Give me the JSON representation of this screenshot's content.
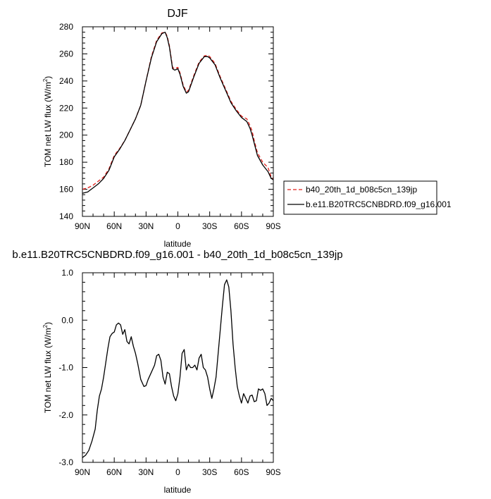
{
  "chart_data": [
    {
      "type": "line",
      "title": "DJF",
      "xlabel": "latitude",
      "ylabel_main": "TOM net LW flux (W/m",
      "ylabel_sup": "2",
      "ylabel_end": ")",
      "xlim": [
        -90,
        90
      ],
      "ylim": [
        140,
        280
      ],
      "x_ticks": [
        {
          "value": -90,
          "label": "90N"
        },
        {
          "value": -60,
          "label": "60N"
        },
        {
          "value": -30,
          "label": "30N"
        },
        {
          "value": 0,
          "label": "0"
        },
        {
          "value": 30,
          "label": "30S"
        },
        {
          "value": 60,
          "label": "60S"
        },
        {
          "value": 90,
          "label": "90S"
        }
      ],
      "y_ticks": [
        {
          "value": 140,
          "label": "140"
        },
        {
          "value": 160,
          "label": "160"
        },
        {
          "value": 180,
          "label": "180"
        },
        {
          "value": 200,
          "label": "200"
        },
        {
          "value": 220,
          "label": "220"
        },
        {
          "value": 240,
          "label": "240"
        },
        {
          "value": 260,
          "label": "260"
        },
        {
          "value": 280,
          "label": "280"
        }
      ],
      "legend_position": "right",
      "series": [
        {
          "name": "b40_20th_1d_b08c5cn_139jp",
          "color": "#e0201b",
          "dash": "dashed",
          "x": [
            -90,
            -85,
            -80,
            -75,
            -70,
            -65,
            -60,
            -55,
            -50,
            -45,
            -40,
            -35,
            -30,
            -25,
            -20,
            -15,
            -12,
            -10,
            -8,
            -5,
            -3,
            0,
            2,
            5,
            8,
            10,
            15,
            20,
            25,
            28,
            30,
            35,
            40,
            45,
            50,
            55,
            60,
            65,
            68,
            70,
            72,
            75,
            80,
            85,
            88,
            90
          ],
          "y": [
            160,
            161,
            163,
            166,
            169,
            175,
            185,
            190,
            196,
            204,
            212,
            222,
            240,
            258,
            270,
            275.5,
            276,
            273,
            266,
            250,
            249,
            250,
            246,
            237,
            232,
            233,
            244,
            254,
            258.5,
            259,
            258,
            253,
            243,
            234,
            225,
            219,
            214,
            212,
            207,
            203,
            196,
            187,
            180,
            176,
            169,
            168
          ]
        },
        {
          "name": "b.e11.B20TRC5CNBDRD.f09_g16.001",
          "color": "#000000",
          "dash": "solid",
          "x": [
            -90,
            -85,
            -80,
            -75,
            -70,
            -65,
            -60,
            -55,
            -50,
            -45,
            -40,
            -35,
            -30,
            -25,
            -20,
            -15,
            -12,
            -10,
            -8,
            -5,
            -3,
            0,
            2,
            5,
            8,
            10,
            15,
            20,
            25,
            28,
            30,
            35,
            40,
            45,
            50,
            55,
            60,
            65,
            68,
            70,
            72,
            75,
            80,
            85,
            88,
            90
          ],
          "y": [
            157,
            158,
            161,
            164,
            168,
            174,
            184,
            189.5,
            196,
            204,
            212,
            222,
            240,
            257,
            269,
            275,
            276,
            272,
            265,
            249,
            248,
            249,
            245,
            236,
            231,
            232,
            243,
            253,
            258,
            258,
            257,
            252,
            242,
            233,
            224,
            218,
            213,
            210,
            205,
            200,
            194,
            185,
            178,
            173,
            168,
            167
          ]
        }
      ]
    },
    {
      "type": "line",
      "title": "b.e11.B20TRC5CNBDRD.f09_g16.001 - b40_20th_1d_b08c5cn_139jp",
      "xlabel": "latitude",
      "ylabel_main": "TOM net LW flux (W/m",
      "ylabel_sup": "2",
      "ylabel_end": ")",
      "xlim": [
        -90,
        90
      ],
      "ylim": [
        -3.0,
        1.0
      ],
      "x_ticks": [
        {
          "value": -90,
          "label": "90N"
        },
        {
          "value": -60,
          "label": "60N"
        },
        {
          "value": -30,
          "label": "30N"
        },
        {
          "value": 0,
          "label": "0"
        },
        {
          "value": 30,
          "label": "30S"
        },
        {
          "value": 60,
          "label": "60S"
        },
        {
          "value": 90,
          "label": "90S"
        }
      ],
      "y_ticks": [
        {
          "value": -3.0,
          "label": "-3.0"
        },
        {
          "value": -2.0,
          "label": "-2.0"
        },
        {
          "value": -1.0,
          "label": "-1.0"
        },
        {
          "value": 0.0,
          "label": "0.0"
        },
        {
          "value": 1.0,
          "label": "1.0"
        }
      ],
      "series": [
        {
          "name": "",
          "color": "#000000",
          "dash": "solid",
          "x": [
            -90,
            -87,
            -84,
            -81,
            -78,
            -76,
            -74,
            -72,
            -70,
            -68,
            -66,
            -64,
            -62,
            -60,
            -58,
            -56,
            -54,
            -52,
            -50,
            -48,
            -46,
            -44,
            -42,
            -40,
            -38,
            -35,
            -32,
            -30,
            -28,
            -25,
            -22,
            -20,
            -18,
            -16,
            -14,
            -12,
            -10,
            -8,
            -6,
            -4,
            -2,
            0,
            2,
            4,
            6,
            8,
            10,
            12,
            14,
            16,
            18,
            20,
            22,
            24,
            26,
            28,
            30,
            32,
            34,
            36,
            38,
            40,
            42,
            44,
            46,
            48,
            50,
            52,
            54,
            56,
            58,
            60,
            62,
            64,
            66,
            68,
            70,
            72,
            74,
            76,
            78,
            80,
            82,
            84,
            86,
            88,
            90
          ],
          "y": [
            -2.9,
            -2.85,
            -2.75,
            -2.55,
            -2.3,
            -1.9,
            -1.6,
            -1.45,
            -1.2,
            -0.9,
            -0.6,
            -0.35,
            -0.28,
            -0.25,
            -0.1,
            -0.06,
            -0.1,
            -0.3,
            -0.2,
            -0.45,
            -0.5,
            -0.35,
            -0.55,
            -0.7,
            -0.9,
            -1.25,
            -1.4,
            -1.38,
            -1.25,
            -1.1,
            -0.95,
            -0.75,
            -0.72,
            -0.85,
            -1.2,
            -1.35,
            -1.1,
            -1.13,
            -1.4,
            -1.6,
            -1.7,
            -1.55,
            -1.2,
            -0.7,
            -0.62,
            -1.05,
            -0.93,
            -1.0,
            -1.0,
            -0.95,
            -1.05,
            -0.8,
            -0.72,
            -1.0,
            -1.05,
            -1.2,
            -1.45,
            -1.65,
            -1.45,
            -1.2,
            -0.7,
            -0.2,
            0.3,
            0.75,
            0.85,
            0.7,
            0.2,
            -0.5,
            -1.0,
            -1.4,
            -1.6,
            -1.75,
            -1.55,
            -1.65,
            -1.75,
            -1.6,
            -1.58,
            -1.72,
            -1.7,
            -1.45,
            -1.48,
            -1.45,
            -1.55,
            -1.8,
            -1.75,
            -1.65,
            -1.7
          ]
        }
      ]
    }
  ]
}
